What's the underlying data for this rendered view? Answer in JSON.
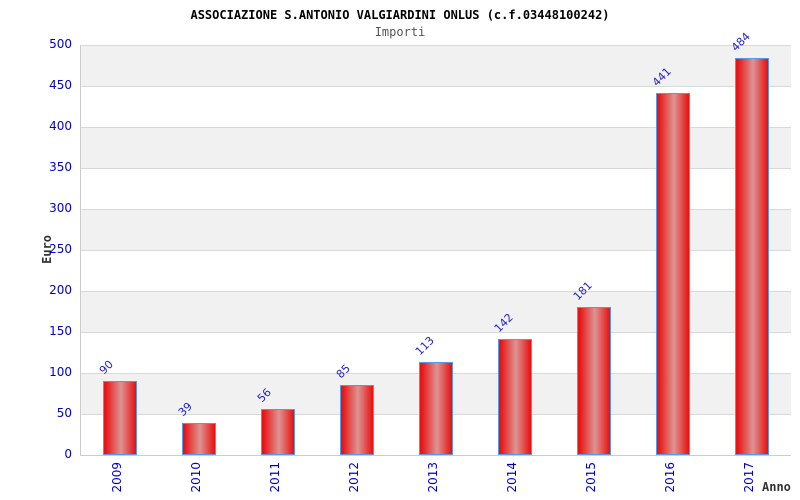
{
  "chart_data": {
    "type": "bar",
    "title": "ASSOCIAZIONE S.ANTONIO VALGIARDINI ONLUS (c.f.03448100242)",
    "subtitle": "Importi",
    "xlabel": "Anno",
    "ylabel": "Euro",
    "categories": [
      "2009",
      "2010",
      "2011",
      "2012",
      "2013",
      "2014",
      "2015",
      "2016",
      "2017"
    ],
    "values": [
      90,
      39,
      56,
      85,
      113,
      142,
      181,
      441,
      484
    ],
    "ylim": [
      0,
      500
    ],
    "ytick_step": 50,
    "legend": "none",
    "grid": "horizontal gridlines with alternating gray/white bands",
    "colors": {
      "bar_edge_red": "#e81414",
      "bar_center_highlight": "#dd9494",
      "bar_border": "#5599ee",
      "tick_label": "#0000cc",
      "value_label": "#2222cc",
      "band_gray": "#f1f1f1",
      "gridline": "#d9d9d9",
      "title_text": "#000000",
      "subtitle_text": "#555555",
      "axis_name_text": "#333333"
    }
  }
}
